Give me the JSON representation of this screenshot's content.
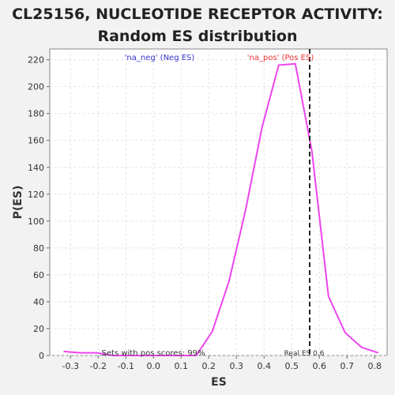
{
  "chart_data": {
    "type": "line",
    "title_line1": "CL25156, NUCLEOTIDE RECEPTOR ACTIVITY:",
    "title_line2": "Random ES distribution",
    "xlabel": "ES",
    "ylabel": "P(ES)",
    "xlim": [
      -0.375,
      0.845
    ],
    "ylim": [
      0,
      228
    ],
    "xticks": [
      -0.3,
      -0.2,
      -0.1,
      0.0,
      0.1,
      0.2,
      0.3,
      0.4,
      0.5,
      0.6,
      0.7,
      0.8
    ],
    "xtick_labels": [
      "-0.3",
      "-0.2",
      "-0.1",
      "0.0",
      "0.1",
      "0.2",
      "0.3",
      "0.4",
      "0.5",
      "0.6",
      "0.7",
      "0.8"
    ],
    "yticks": [
      0,
      20,
      40,
      60,
      80,
      100,
      120,
      140,
      160,
      180,
      200,
      220
    ],
    "ytick_labels": [
      "0",
      "20",
      "40",
      "60",
      "80",
      "100",
      "120",
      "140",
      "160",
      "180",
      "200",
      "220"
    ],
    "grid": true,
    "series": [
      {
        "color": "#ee44ee",
        "x": [
          -0.325,
          -0.265,
          -0.205,
          -0.145,
          -0.085,
          -0.025,
          0.035,
          0.095,
          0.155,
          0.213,
          0.273,
          0.333,
          0.393,
          0.453,
          0.513,
          0.573,
          0.633,
          0.693,
          0.753,
          0.813
        ],
        "y": [
          3,
          2,
          2,
          0,
          0,
          0,
          0,
          0,
          0,
          18,
          55,
          108,
          170,
          216,
          217,
          152,
          44,
          17,
          6,
          2
        ]
      }
    ],
    "real_es": 0.565,
    "annotations": {
      "neg_label": "'na_neg' (Neg ES)",
      "neg_color": "#3333cc",
      "pos_label": "'na_pos' (Pos ES)",
      "pos_color": "#ee3333",
      "sets_pos": "Sets with pos scores: 99%",
      "real_es_label": "Real ES 0.6"
    }
  }
}
